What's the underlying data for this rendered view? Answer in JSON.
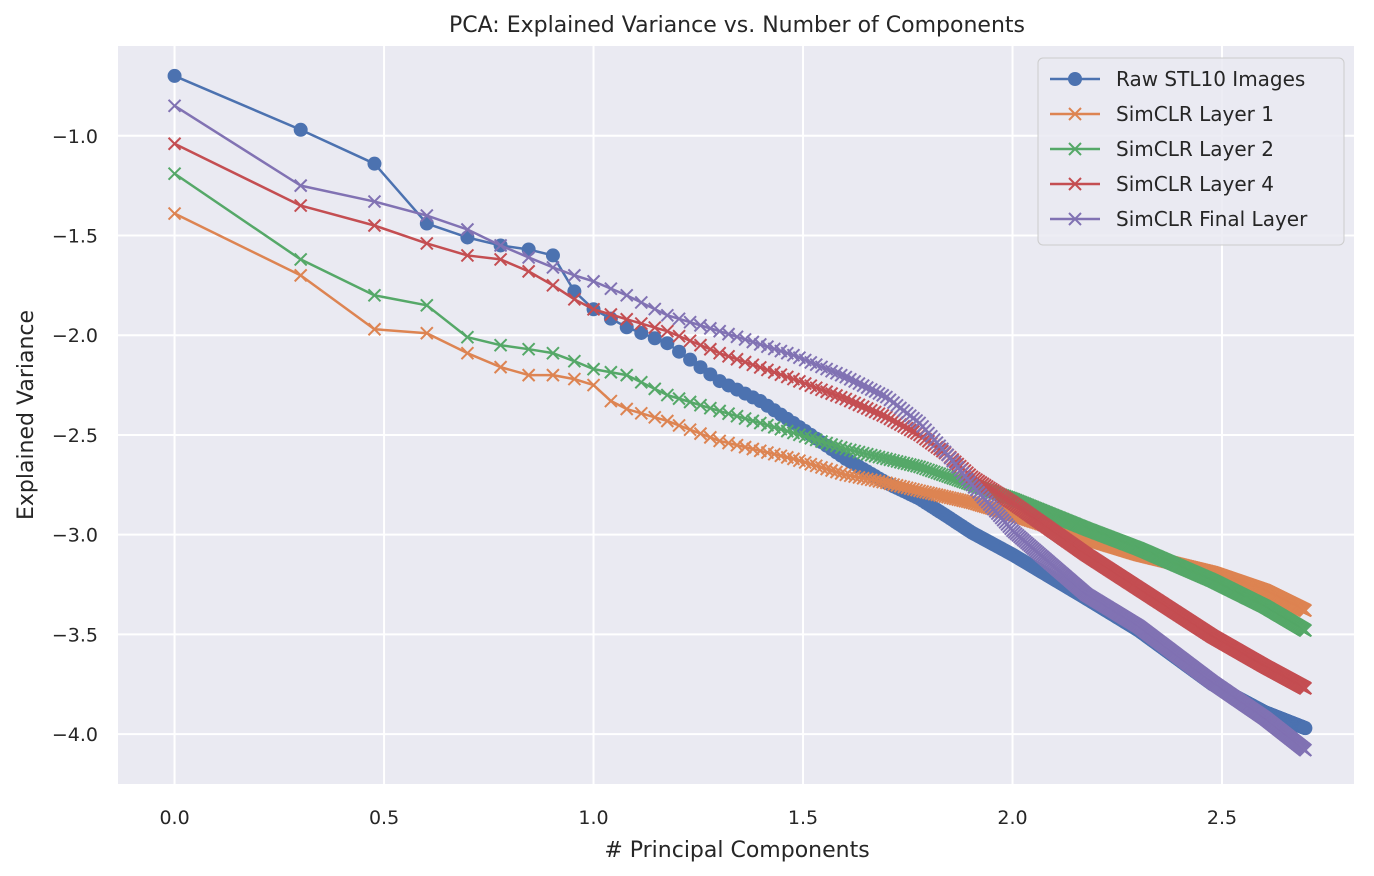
{
  "chart_data": {
    "type": "line",
    "title": "PCA: Explained Variance vs. Number of Components",
    "xlabel": "# Principal Components",
    "ylabel": "Explained Variance",
    "xlim": [
      -0.135,
      2.815
    ],
    "ylim": [
      -4.25,
      -0.55
    ],
    "xticks": [
      0.0,
      0.5,
      1.0,
      1.5,
      2.0,
      2.5
    ],
    "xtick_labels": [
      "0.0",
      "0.5",
      "1.0",
      "1.5",
      "2.0",
      "2.5"
    ],
    "yticks": [
      -1.0,
      -1.5,
      -2.0,
      -2.5,
      -3.0,
      -3.5,
      -4.0
    ],
    "ytick_labels": [
      "−1.0",
      "−1.5",
      "−2.0",
      "−2.5",
      "−3.0",
      "−3.5",
      "−4.0"
    ],
    "grid": true,
    "legend_position": "top-right",
    "background_color": "#eaeaf2",
    "series": [
      {
        "name": "Raw STL10 Images",
        "color": "#4c72b0",
        "marker": "circle",
        "anchors": [
          [
            1,
            -0.7
          ],
          [
            2,
            -0.97
          ],
          [
            3,
            -1.14
          ],
          [
            4,
            -1.44
          ],
          [
            5,
            -1.51
          ],
          [
            6,
            -1.55
          ],
          [
            7,
            -1.57
          ],
          [
            8,
            -1.6
          ],
          [
            9,
            -1.78
          ],
          [
            10,
            -1.87
          ],
          [
            12,
            -1.96
          ],
          [
            15,
            -2.04
          ],
          [
            20,
            -2.23
          ],
          [
            25,
            -2.33
          ],
          [
            30,
            -2.44
          ],
          [
            40,
            -2.62
          ],
          [
            50,
            -2.74
          ],
          [
            60,
            -2.82
          ],
          [
            70,
            -2.91
          ],
          [
            80,
            -2.99
          ],
          [
            100,
            -3.1
          ],
          [
            150,
            -3.32
          ],
          [
            200,
            -3.48
          ],
          [
            300,
            -3.75
          ],
          [
            400,
            -3.89
          ],
          [
            500,
            -3.97
          ]
        ]
      },
      {
        "name": "SimCLR Layer 1",
        "color": "#dd8452",
        "marker": "x",
        "anchors": [
          [
            1,
            -1.39
          ],
          [
            2,
            -1.7
          ],
          [
            3,
            -1.97
          ],
          [
            4,
            -1.99
          ],
          [
            5,
            -2.09
          ],
          [
            6,
            -2.16
          ],
          [
            7,
            -2.2
          ],
          [
            8,
            -2.2
          ],
          [
            9,
            -2.22
          ],
          [
            10,
            -2.25
          ],
          [
            11,
            -2.33
          ],
          [
            12,
            -2.37
          ],
          [
            15,
            -2.43
          ],
          [
            20,
            -2.53
          ],
          [
            30,
            -2.62
          ],
          [
            40,
            -2.7
          ],
          [
            50,
            -2.74
          ],
          [
            60,
            -2.78
          ],
          [
            80,
            -2.84
          ],
          [
            100,
            -2.9
          ],
          [
            150,
            -3.02
          ],
          [
            200,
            -3.1
          ],
          [
            300,
            -3.19
          ],
          [
            400,
            -3.28
          ],
          [
            500,
            -3.38
          ]
        ]
      },
      {
        "name": "SimCLR Layer 2",
        "color": "#55a868",
        "marker": "x",
        "anchors": [
          [
            1,
            -1.19
          ],
          [
            2,
            -1.62
          ],
          [
            3,
            -1.8
          ],
          [
            4,
            -1.85
          ],
          [
            5,
            -2.01
          ],
          [
            6,
            -2.05
          ],
          [
            7,
            -2.07
          ],
          [
            8,
            -2.09
          ],
          [
            9,
            -2.13
          ],
          [
            10,
            -2.17
          ],
          [
            12,
            -2.2
          ],
          [
            15,
            -2.3
          ],
          [
            20,
            -2.38
          ],
          [
            30,
            -2.49
          ],
          [
            40,
            -2.57
          ],
          [
            50,
            -2.62
          ],
          [
            60,
            -2.66
          ],
          [
            80,
            -2.75
          ],
          [
            100,
            -2.82
          ],
          [
            150,
            -2.97
          ],
          [
            200,
            -3.07
          ],
          [
            300,
            -3.23
          ],
          [
            400,
            -3.36
          ],
          [
            500,
            -3.48
          ]
        ]
      },
      {
        "name": "SimCLR Layer 4",
        "color": "#c44e52",
        "marker": "x",
        "anchors": [
          [
            1,
            -1.04
          ],
          [
            2,
            -1.35
          ],
          [
            3,
            -1.45
          ],
          [
            4,
            -1.54
          ],
          [
            5,
            -1.6
          ],
          [
            6,
            -1.62
          ],
          [
            7,
            -1.68
          ],
          [
            8,
            -1.75
          ],
          [
            9,
            -1.82
          ],
          [
            10,
            -1.87
          ],
          [
            12,
            -1.92
          ],
          [
            15,
            -1.98
          ],
          [
            20,
            -2.09
          ],
          [
            30,
            -2.22
          ],
          [
            40,
            -2.32
          ],
          [
            50,
            -2.41
          ],
          [
            60,
            -2.5
          ],
          [
            70,
            -2.6
          ],
          [
            80,
            -2.71
          ],
          [
            100,
            -2.84
          ],
          [
            150,
            -3.1
          ],
          [
            200,
            -3.27
          ],
          [
            300,
            -3.51
          ],
          [
            400,
            -3.66
          ],
          [
            500,
            -3.77
          ]
        ]
      },
      {
        "name": "SimCLR Final Layer",
        "color": "#8172b3",
        "marker": "x",
        "anchors": [
          [
            1,
            -0.85
          ],
          [
            2,
            -1.25
          ],
          [
            3,
            -1.33
          ],
          [
            4,
            -1.4
          ],
          [
            5,
            -1.47
          ],
          [
            6,
            -1.55
          ],
          [
            7,
            -1.61
          ],
          [
            8,
            -1.66
          ],
          [
            9,
            -1.7
          ],
          [
            10,
            -1.73
          ],
          [
            12,
            -1.8
          ],
          [
            15,
            -1.9
          ],
          [
            20,
            -1.98
          ],
          [
            30,
            -2.1
          ],
          [
            40,
            -2.21
          ],
          [
            50,
            -2.31
          ],
          [
            60,
            -2.44
          ],
          [
            70,
            -2.6
          ],
          [
            80,
            -2.75
          ],
          [
            100,
            -2.98
          ],
          [
            150,
            -3.3
          ],
          [
            200,
            -3.46
          ],
          [
            300,
            -3.74
          ],
          [
            400,
            -3.92
          ],
          [
            500,
            -4.08
          ]
        ]
      }
    ]
  }
}
